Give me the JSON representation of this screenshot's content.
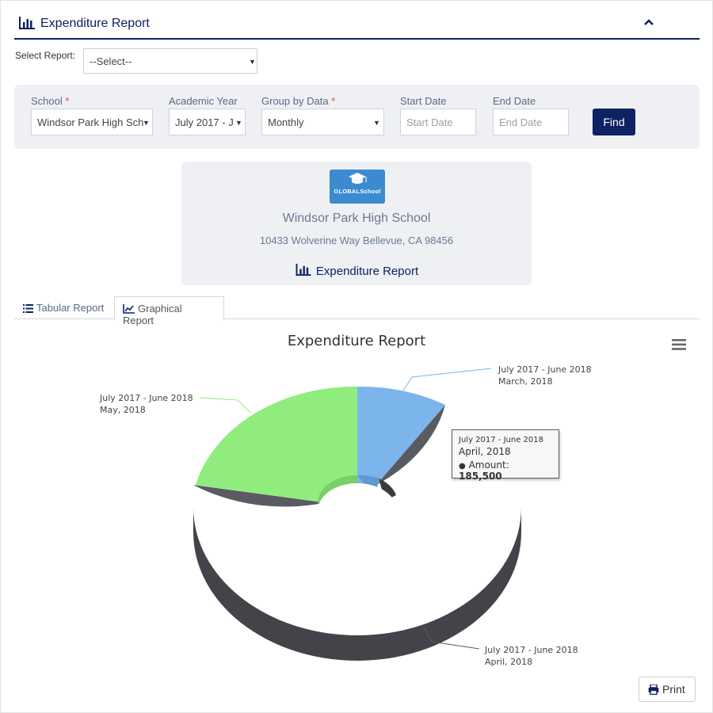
{
  "header": {
    "title": "Expenditure Report"
  },
  "select_report": {
    "label": "Select Report:",
    "value": "--Select--"
  },
  "filters": {
    "school": {
      "label": "School",
      "required": "*",
      "value": "Windsor Park High Sch"
    },
    "academic_year": {
      "label": "Academic Year",
      "value": "July 2017 - J"
    },
    "group_by": {
      "label": "Group by Data",
      "required": "*",
      "value": "Monthly"
    },
    "start_date": {
      "label": "Start Date",
      "placeholder": "Start Date"
    },
    "end_date": {
      "label": "End Date",
      "placeholder": "End Date"
    },
    "find_label": "Find"
  },
  "school_card": {
    "logo_text": "GLOBALSchool",
    "name": "Windsor Park High School",
    "address": "10433 Wolverine Way Bellevue, CA 98456",
    "report_title": "Expenditure Report"
  },
  "tabs": [
    {
      "label": "Tabular Report"
    },
    {
      "label": "Graphical Report"
    }
  ],
  "chart_data": {
    "type": "pie",
    "title": "Expenditure Report",
    "donut": true,
    "slices": [
      {
        "period": "July 2017 - June 2018",
        "month": "March, 2018",
        "share": 0.1,
        "color": "#7cb5ec"
      },
      {
        "period": "July 2017 - June 2018",
        "month": "April, 2018",
        "value": 185500,
        "share": 0.65,
        "color": "#5a5b61"
      },
      {
        "period": "July 2017 - June 2018",
        "month": "May, 2018",
        "share": 0.25,
        "color": "#90ed7d"
      }
    ],
    "tooltip": {
      "line1": "July 2017 - June 2018",
      "line2": "April, 2018",
      "label": "Amount:",
      "value": "185,500"
    }
  },
  "print_label": "Print"
}
